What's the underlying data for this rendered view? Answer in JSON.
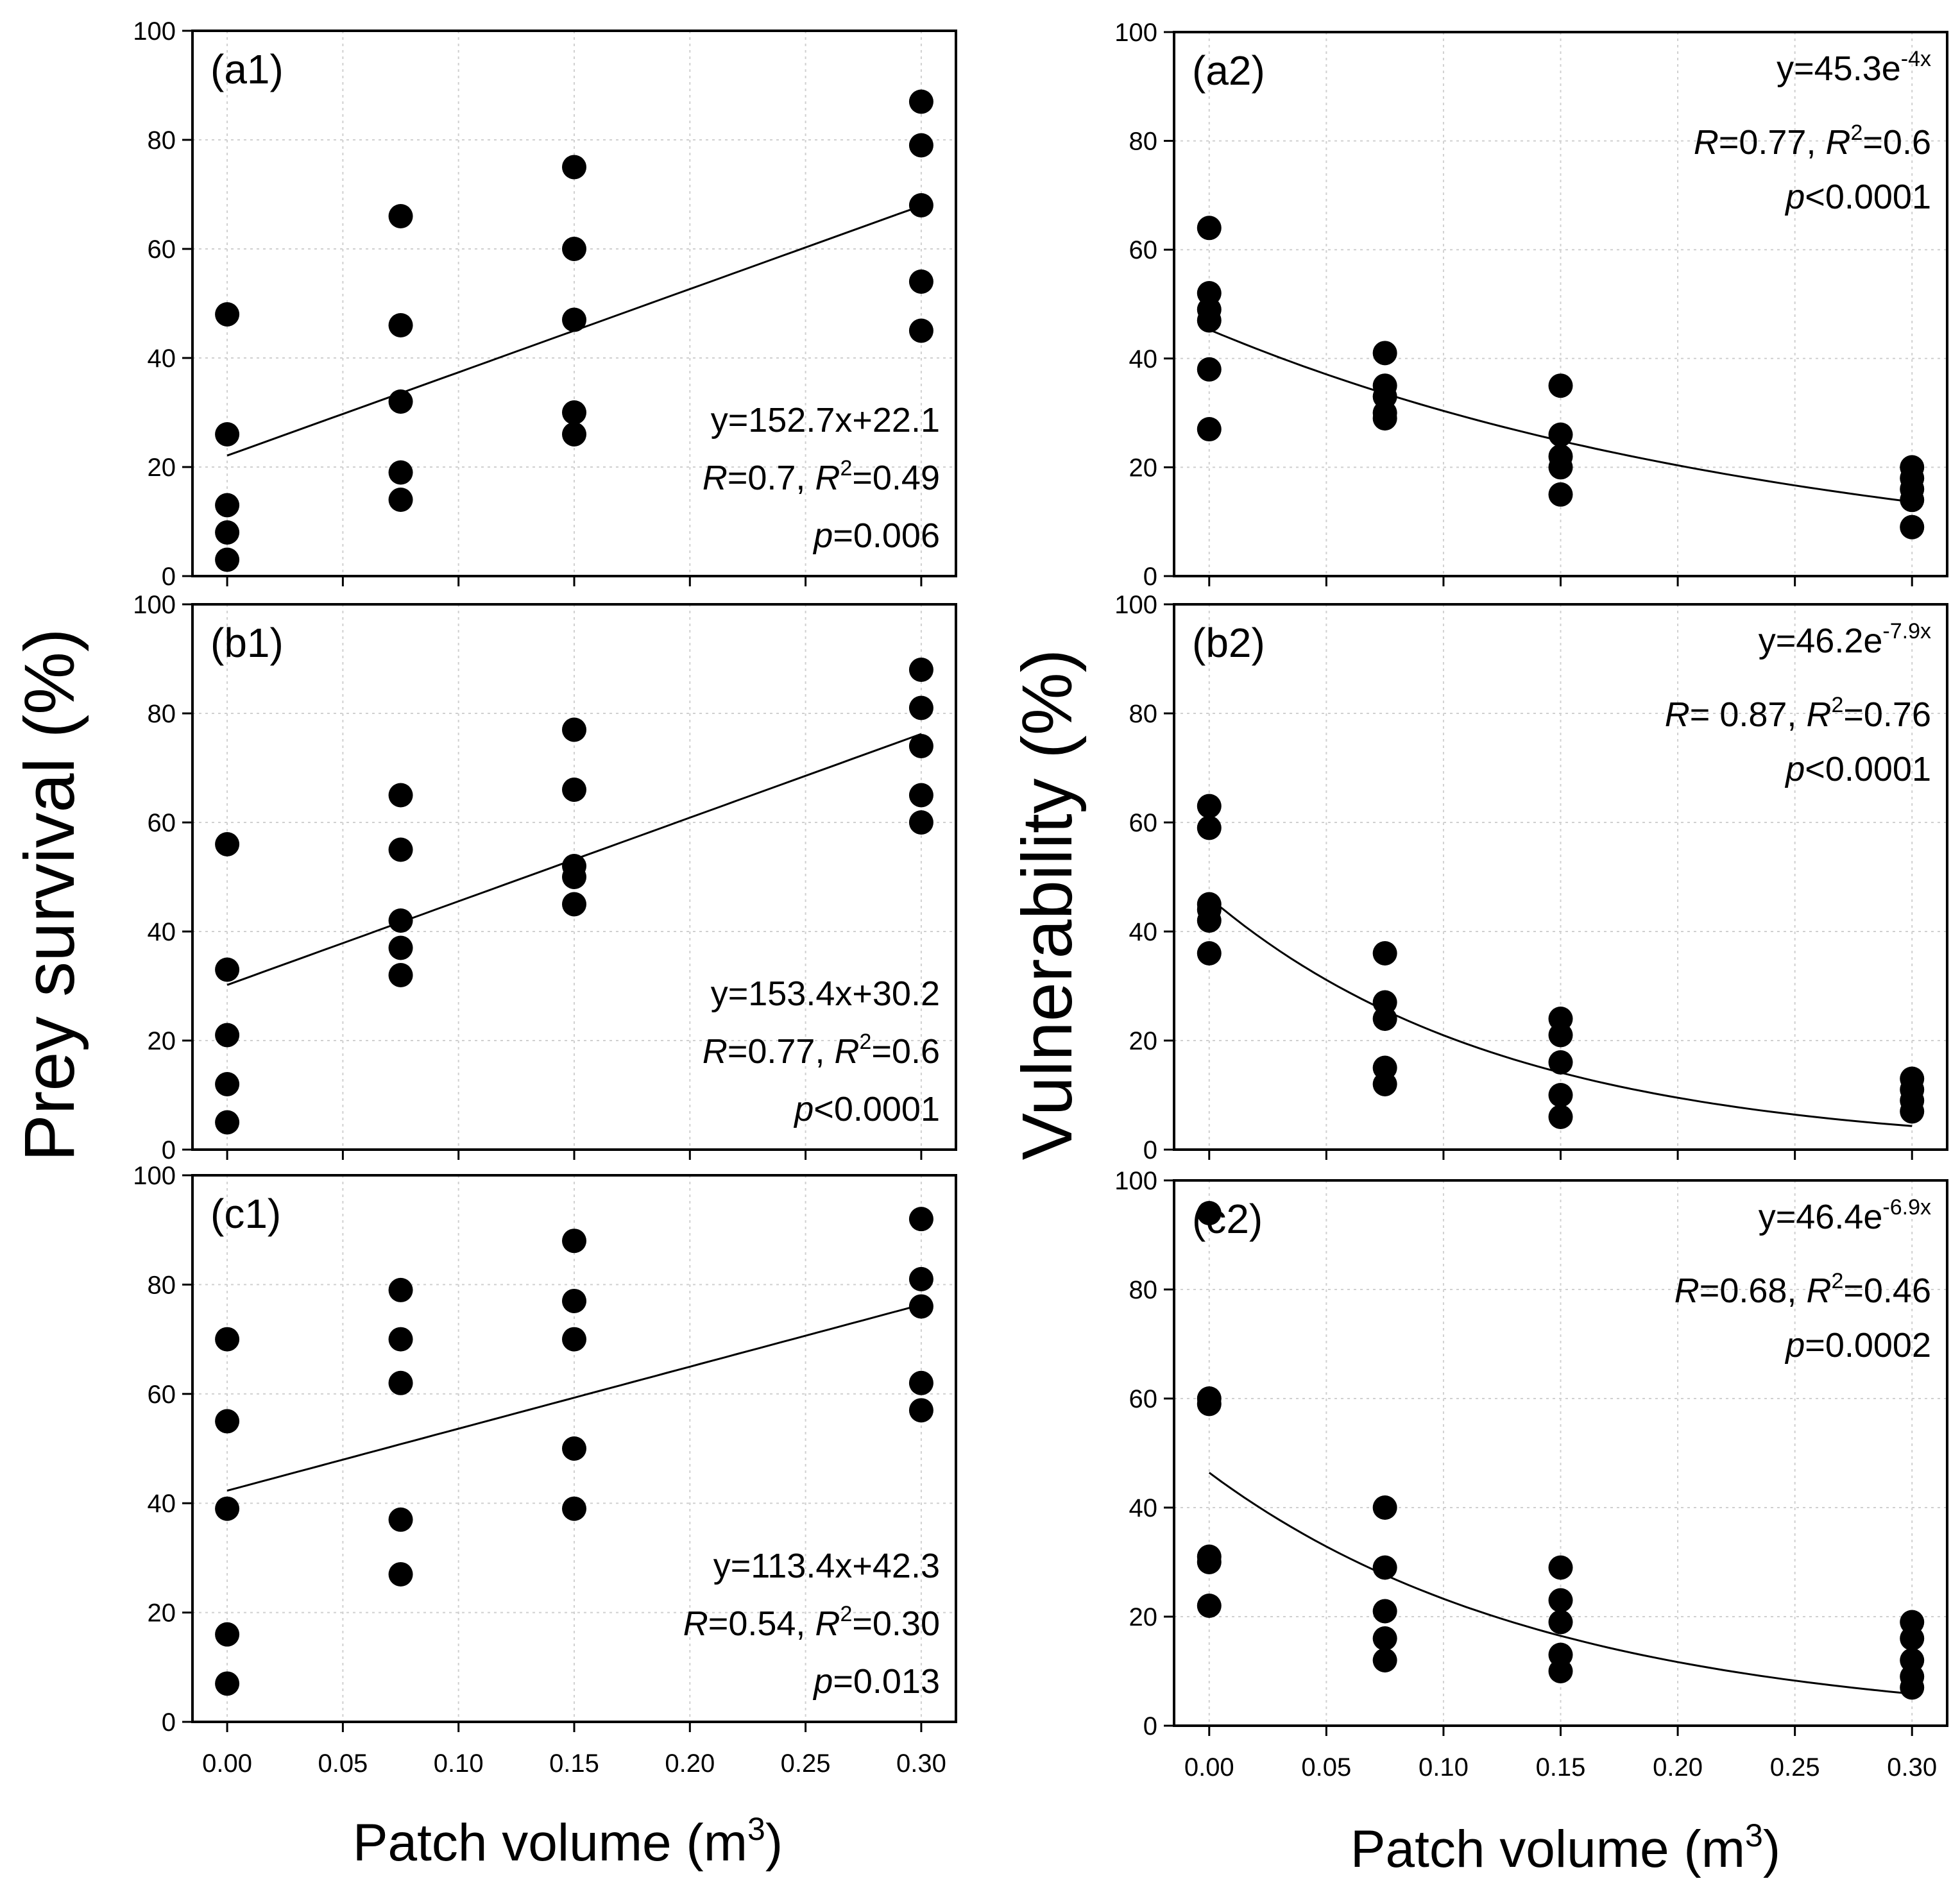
{
  "figure": {
    "left_ylabel": "Prey survival (%)",
    "right_ylabel": "Vulnerability (%)",
    "xlabel_base": "Patch volume (m",
    "xlabel_sup": "3",
    "xlabel_close": ")"
  },
  "chart_data": [
    {
      "type": "scatter",
      "label": "(a1)",
      "x_ticks": [
        "0.00",
        "0.05",
        "0.10",
        "0.15",
        "0.20",
        "0.25",
        "0.30"
      ],
      "y_ticks": [
        "0",
        "20",
        "40",
        "60",
        "80",
        "100"
      ],
      "xlim": [
        -0.015,
        0.315
      ],
      "ylim": [
        0,
        100
      ],
      "grid": true,
      "points": [
        [
          0,
          48
        ],
        [
          0,
          26
        ],
        [
          0,
          13
        ],
        [
          0,
          8
        ],
        [
          0,
          3
        ],
        [
          0.075,
          66
        ],
        [
          0.075,
          46
        ],
        [
          0.075,
          32
        ],
        [
          0.075,
          19
        ],
        [
          0.075,
          14
        ],
        [
          0.15,
          75
        ],
        [
          0.15,
          60
        ],
        [
          0.15,
          47
        ],
        [
          0.15,
          30
        ],
        [
          0.15,
          26
        ],
        [
          0.3,
          87
        ],
        [
          0.3,
          79
        ],
        [
          0.3,
          68
        ],
        [
          0.3,
          54
        ],
        [
          0.3,
          45
        ]
      ],
      "fit": {
        "kind": "linear",
        "a": 152.7,
        "b": 22.1
      },
      "eq": "y=152.7x+22.1",
      "r_val": "=0.7, ",
      "r2_val": "=0.49",
      "p_val": "=0.006"
    },
    {
      "type": "scatter",
      "label": "(b1)",
      "x_ticks": [
        "0.00",
        "0.05",
        "0.10",
        "0.15",
        "0.20",
        "0.25",
        "0.30"
      ],
      "y_ticks": [
        "0",
        "20",
        "40",
        "60",
        "80",
        "100"
      ],
      "xlim": [
        -0.015,
        0.315
      ],
      "ylim": [
        0,
        100
      ],
      "grid": true,
      "points": [
        [
          0,
          56
        ],
        [
          0,
          33
        ],
        [
          0,
          21
        ],
        [
          0,
          12
        ],
        [
          0,
          5
        ],
        [
          0.075,
          65
        ],
        [
          0.075,
          55
        ],
        [
          0.075,
          42
        ],
        [
          0.075,
          37
        ],
        [
          0.075,
          32
        ],
        [
          0.15,
          77
        ],
        [
          0.15,
          66
        ],
        [
          0.15,
          52
        ],
        [
          0.15,
          50
        ],
        [
          0.15,
          45
        ],
        [
          0.3,
          88
        ],
        [
          0.3,
          81
        ],
        [
          0.3,
          74
        ],
        [
          0.3,
          65
        ],
        [
          0.3,
          60
        ]
      ],
      "fit": {
        "kind": "linear",
        "a": 153.4,
        "b": 30.2
      },
      "eq": "y=153.4x+30.2",
      "r_val": "=0.77, ",
      "r2_val": "=0.6",
      "p_val": "<0.0001"
    },
    {
      "type": "scatter",
      "label": "(c1)",
      "x_ticks": [
        "0.00",
        "0.05",
        "0.10",
        "0.15",
        "0.20",
        "0.25",
        "0.30"
      ],
      "y_ticks": [
        "0",
        "20",
        "40",
        "60",
        "80",
        "100"
      ],
      "xlim": [
        -0.015,
        0.315
      ],
      "ylim": [
        0,
        100
      ],
      "grid": true,
      "points": [
        [
          0,
          70
        ],
        [
          0,
          55
        ],
        [
          0,
          39
        ],
        [
          0,
          16
        ],
        [
          0,
          7
        ],
        [
          0.075,
          79
        ],
        [
          0.075,
          70
        ],
        [
          0.075,
          62
        ],
        [
          0.075,
          37
        ],
        [
          0.075,
          27
        ],
        [
          0.15,
          88
        ],
        [
          0.15,
          77
        ],
        [
          0.15,
          70
        ],
        [
          0.15,
          50
        ],
        [
          0.15,
          39
        ],
        [
          0.3,
          92
        ],
        [
          0.3,
          81
        ],
        [
          0.3,
          76
        ],
        [
          0.3,
          62
        ],
        [
          0.3,
          57
        ]
      ],
      "fit": {
        "kind": "linear",
        "a": 113.4,
        "b": 42.3
      },
      "eq": "y=113.4x+42.3",
      "r_val": "=0.54, ",
      "r2_val": "=0.30",
      "p_val": "=0.013"
    },
    {
      "type": "scatter",
      "label": "(a2)",
      "x_ticks": [
        "0.00",
        "0.05",
        "0.10",
        "0.15",
        "0.20",
        "0.25",
        "0.30"
      ],
      "y_ticks": [
        "0",
        "20",
        "40",
        "60",
        "80",
        "100"
      ],
      "xlim": [
        -0.015,
        0.315
      ],
      "ylim": [
        0,
        100
      ],
      "grid": true,
      "points": [
        [
          0,
          64
        ],
        [
          0,
          52
        ],
        [
          0,
          49
        ],
        [
          0,
          47
        ],
        [
          0,
          38
        ],
        [
          0,
          27
        ],
        [
          0.075,
          41
        ],
        [
          0.075,
          35
        ],
        [
          0.075,
          33
        ],
        [
          0.075,
          30
        ],
        [
          0.075,
          29
        ],
        [
          0.15,
          35
        ],
        [
          0.15,
          26
        ],
        [
          0.15,
          22
        ],
        [
          0.15,
          20
        ],
        [
          0.15,
          15
        ],
        [
          0.3,
          20
        ],
        [
          0.3,
          18
        ],
        [
          0.3,
          16
        ],
        [
          0.3,
          14
        ],
        [
          0.3,
          9
        ]
      ],
      "fit": {
        "kind": "exp",
        "a": 45.3,
        "b": -4
      },
      "eq_base": "y=45.3e",
      "eq_exp": "-4x",
      "r_val": "=0.77, ",
      "r2_val": "=0.6",
      "p_val": "<0.0001"
    },
    {
      "type": "scatter",
      "label": "(b2)",
      "x_ticks": [
        "0.00",
        "0.05",
        "0.10",
        "0.15",
        "0.20",
        "0.25",
        "0.30"
      ],
      "y_ticks": [
        "0",
        "20",
        "40",
        "60",
        "80",
        "100"
      ],
      "xlim": [
        -0.015,
        0.315
      ],
      "ylim": [
        0,
        100
      ],
      "grid": true,
      "points": [
        [
          0,
          63
        ],
        [
          0,
          59
        ],
        [
          0,
          45
        ],
        [
          0,
          44
        ],
        [
          0,
          42
        ],
        [
          0,
          36
        ],
        [
          0.075,
          36
        ],
        [
          0.075,
          27
        ],
        [
          0.075,
          24
        ],
        [
          0.075,
          15
        ],
        [
          0.075,
          12
        ],
        [
          0.15,
          24
        ],
        [
          0.15,
          21
        ],
        [
          0.15,
          16
        ],
        [
          0.15,
          10
        ],
        [
          0.15,
          6
        ],
        [
          0.3,
          13
        ],
        [
          0.3,
          11
        ],
        [
          0.3,
          9
        ],
        [
          0.3,
          7
        ]
      ],
      "fit": {
        "kind": "exp",
        "a": 46.2,
        "b": -7.9
      },
      "eq_base": "y=46.2e",
      "eq_exp": "-7.9x",
      "r_val": "= 0.87, ",
      "r2_val": "=0.76",
      "p_val": "<0.0001"
    },
    {
      "type": "scatter",
      "label": "(c2)",
      "x_ticks": [
        "0.00",
        "0.05",
        "0.10",
        "0.15",
        "0.20",
        "0.25",
        "0.30"
      ],
      "y_ticks": [
        "0",
        "20",
        "40",
        "60",
        "80",
        "100"
      ],
      "xlim": [
        -0.015,
        0.315
      ],
      "ylim": [
        0,
        100
      ],
      "grid": true,
      "points": [
        [
          0,
          94
        ],
        [
          0,
          60
        ],
        [
          0,
          59
        ],
        [
          0,
          31
        ],
        [
          0,
          30
        ],
        [
          0,
          22
        ],
        [
          0.075,
          40
        ],
        [
          0.075,
          29
        ],
        [
          0.075,
          21
        ],
        [
          0.075,
          16
        ],
        [
          0.075,
          12
        ],
        [
          0.15,
          29
        ],
        [
          0.15,
          23
        ],
        [
          0.15,
          19
        ],
        [
          0.15,
          13
        ],
        [
          0.15,
          10
        ],
        [
          0.3,
          19
        ],
        [
          0.3,
          16
        ],
        [
          0.3,
          12
        ],
        [
          0.3,
          9
        ],
        [
          0.3,
          7
        ]
      ],
      "fit": {
        "kind": "exp",
        "a": 46.4,
        "b": -6.9
      },
      "eq_base": "y=46.4e",
      "eq_exp": "-6.9x",
      "r_val": "=0.68, ",
      "r2_val": "=0.46",
      "p_val": "=0.0002"
    }
  ]
}
